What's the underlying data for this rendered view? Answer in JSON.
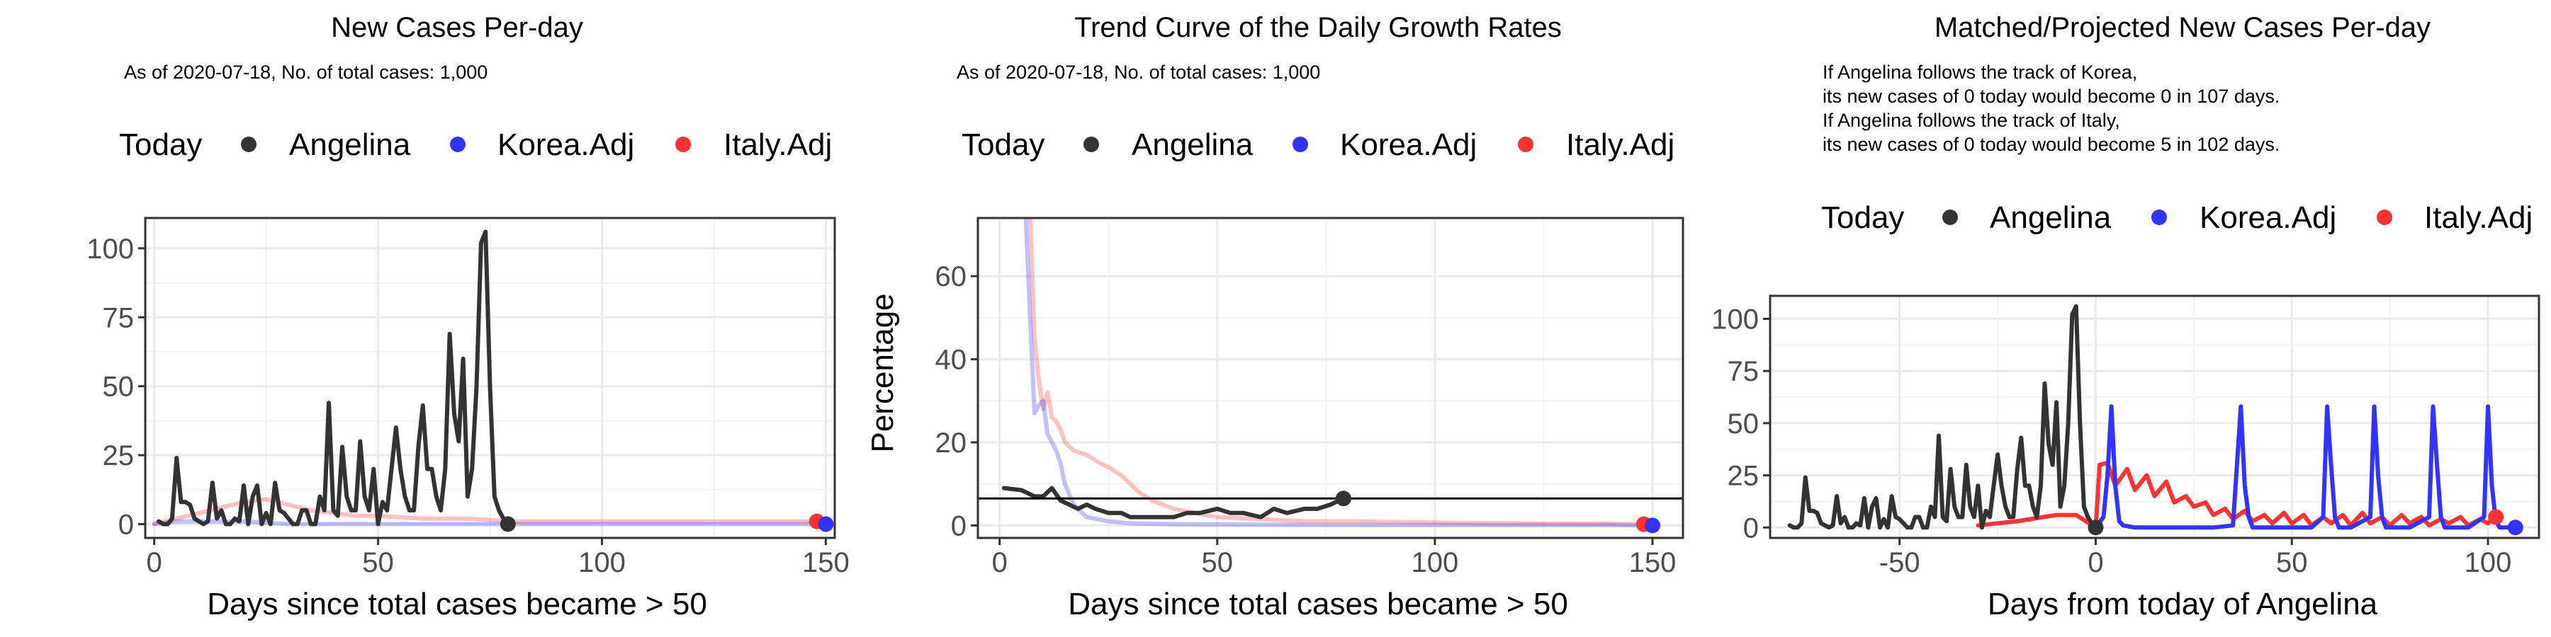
{
  "colors": {
    "angelina": "#333333",
    "korea": "#3333ff",
    "italy": "#ff3333",
    "refline": "#000000"
  },
  "chart_data": [
    {
      "type": "line",
      "title": "New Cases Per-day",
      "subtitle_lines": [
        "As of 2020-07-18, No. of total cases: 1,000"
      ],
      "legend": {
        "title": "Today",
        "entries": [
          "Angelina",
          "Korea.Adj",
          "Italy.Adj"
        ],
        "placement": "top"
      },
      "xlabel": "Days since total cases became > 50",
      "ylabel": "",
      "xlim": [
        -2,
        152
      ],
      "ylim": [
        -5,
        111
      ],
      "xticks": [
        0,
        50,
        100,
        150
      ],
      "yticks": [
        0,
        25,
        50,
        75,
        100
      ],
      "grid": true,
      "series": [
        {
          "name": "Italy.Adj",
          "color": "#ff3333",
          "opacity": 0.3,
          "x": [
            0,
            5,
            10,
            15,
            20,
            25,
            30,
            35,
            40,
            45,
            50,
            60,
            70,
            80,
            90,
            100,
            110,
            120,
            130,
            140,
            148
          ],
          "y": [
            0,
            2,
            4,
            6,
            8,
            9,
            7,
            5,
            4,
            3,
            3,
            2,
            2,
            1,
            1,
            1,
            1,
            1,
            1,
            1,
            1
          ],
          "today": {
            "x": 148,
            "y": 1
          }
        },
        {
          "name": "Korea.Adj",
          "color": "#3333ff",
          "opacity": 0.3,
          "x": [
            0,
            5,
            10,
            15,
            20,
            30,
            40,
            50,
            60,
            70,
            80,
            90,
            100,
            110,
            120,
            130,
            140,
            150
          ],
          "y": [
            0,
            1,
            1,
            1,
            1,
            0,
            0,
            0,
            0,
            0,
            0,
            0,
            0,
            0,
            0,
            0,
            0,
            0
          ],
          "today": {
            "x": 150,
            "y": 0
          }
        },
        {
          "name": "Angelina",
          "color": "#333333",
          "opacity": 1,
          "x": [
            1,
            2,
            3,
            4,
            5,
            6,
            7,
            8,
            9,
            10,
            11,
            12,
            13,
            14,
            15,
            16,
            17,
            18,
            19,
            20,
            21,
            22,
            23,
            24,
            25,
            26,
            27,
            28,
            29,
            30,
            31,
            32,
            33,
            34,
            35,
            36,
            37,
            38,
            39,
            40,
            41,
            42,
            43,
            44,
            45,
            46,
            47,
            48,
            49,
            50,
            51,
            52,
            53,
            54,
            55,
            56,
            57,
            58,
            59,
            60,
            61,
            62,
            63,
            64,
            65,
            66,
            67,
            68,
            69,
            70,
            71,
            72,
            73,
            74,
            75,
            76,
            77,
            78,
            79
          ],
          "y": [
            1,
            0,
            0,
            2,
            24,
            8,
            8,
            7,
            2,
            1,
            0,
            1,
            15,
            2,
            5,
            0,
            0,
            2,
            1,
            14,
            0,
            10,
            14,
            0,
            4,
            0,
            15,
            5,
            4,
            2,
            0,
            0,
            5,
            5,
            0,
            0,
            10,
            5,
            44,
            5,
            3,
            28,
            10,
            5,
            5,
            30,
            10,
            5,
            20,
            0,
            8,
            5,
            20,
            35,
            20,
            10,
            5,
            5,
            28,
            43,
            20,
            20,
            10,
            5,
            20,
            69,
            40,
            30,
            60,
            10,
            20,
            50,
            102,
            106,
            50,
            10,
            5,
            2,
            0
          ],
          "today": {
            "x": 79,
            "y": 0
          }
        }
      ]
    },
    {
      "type": "line",
      "title": "Trend Curve of the Daily Growth Rates",
      "subtitle_lines": [
        "As of 2020-07-18, No. of total cases: 1,000"
      ],
      "legend": {
        "title": "Today",
        "entries": [
          "Angelina",
          "Korea.Adj",
          "Italy.Adj"
        ],
        "placement": "top"
      },
      "xlabel": "Days since total cases became > 50",
      "ylabel": "Percentage",
      "xlim": [
        -5,
        157
      ],
      "ylim": [
        -3,
        74
      ],
      "xticks": [
        0,
        50,
        100,
        150
      ],
      "yticks": [
        0,
        20,
        40,
        60
      ],
      "grid": true,
      "hline": 6.5,
      "series": [
        {
          "name": "Italy.Adj",
          "color": "#ff3333",
          "opacity": 0.3,
          "x": [
            7,
            8,
            9,
            10,
            11,
            12,
            13,
            14,
            15,
            17,
            20,
            23,
            25,
            28,
            30,
            32,
            35,
            40,
            45,
            50,
            60,
            70,
            80,
            100,
            120,
            140,
            148
          ],
          "y": [
            74,
            45,
            35,
            28,
            32,
            26,
            25,
            23,
            20,
            18,
            17,
            15,
            14,
            12,
            10,
            8,
            6,
            4,
            3,
            2,
            1.5,
            1,
            1,
            0.7,
            0.5,
            0.4,
            0.3
          ],
          "today": {
            "x": 148,
            "y": 0.3
          }
        },
        {
          "name": "Korea.Adj",
          "color": "#3333ff",
          "opacity": 0.3,
          "x": [
            6,
            7,
            8,
            9,
            10,
            11,
            12,
            13,
            14,
            15,
            17,
            20,
            25,
            30,
            40,
            60,
            80,
            100,
            120,
            140,
            150
          ],
          "y": [
            74,
            50,
            27,
            29,
            30,
            22,
            20,
            18,
            15,
            10,
            5,
            2,
            1,
            0.5,
            0.3,
            0.2,
            0.1,
            0.1,
            0.1,
            0.1,
            0
          ],
          "today": {
            "x": 150,
            "y": 0
          }
        },
        {
          "name": "Angelina",
          "color": "#333333",
          "opacity": 1,
          "x": [
            1,
            5,
            8,
            10,
            12,
            14,
            16,
            18,
            20,
            22,
            25,
            28,
            30,
            33,
            36,
            40,
            43,
            46,
            50,
            53,
            56,
            60,
            63,
            66,
            70,
            73,
            76,
            79
          ],
          "y": [
            9,
            8.5,
            7,
            7,
            9,
            6,
            5,
            4,
            5,
            4,
            3,
            3,
            2,
            2,
            2,
            2,
            3,
            3,
            4,
            3,
            3,
            2,
            4,
            3,
            4,
            4,
            5,
            6.5
          ],
          "today": {
            "x": 79,
            "y": 6.5
          }
        }
      ]
    },
    {
      "type": "line",
      "title": "Matched/Projected New Cases Per-day",
      "subtitle_lines": [
        "If Angelina follows the track of Korea,",
        "its new cases of 0 today would become 0 in 107 days.",
        "If Angelina follows the track of Italy,",
        "its new cases of 0 today would become 5 in 102 days."
      ],
      "legend": {
        "title": "Today",
        "entries": [
          "Angelina",
          "Korea.Adj",
          "Italy.Adj"
        ],
        "placement": "top"
      },
      "xlabel": "Days from today of Angelina",
      "ylabel": "",
      "xlim": [
        -83,
        113
      ],
      "ylim": [
        -5,
        111
      ],
      "xticks": [
        -50,
        0,
        50,
        100
      ],
      "yticks": [
        0,
        25,
        50,
        75,
        100
      ],
      "grid": true,
      "series": [
        {
          "name": "Italy.Adj",
          "color": "#ff3333",
          "opacity": 1,
          "x": [
            -30,
            -20,
            -10,
            -5,
            0,
            1,
            3,
            5,
            8,
            10,
            13,
            15,
            18,
            20,
            23,
            25,
            28,
            30,
            33,
            35,
            38,
            40,
            43,
            45,
            48,
            50,
            53,
            55,
            58,
            60,
            63,
            65,
            68,
            70,
            73,
            75,
            78,
            80,
            83,
            85,
            88,
            90,
            93,
            95,
            98,
            100,
            102
          ],
          "y": [
            1,
            3,
            6,
            6,
            0,
            30,
            31,
            20,
            28,
            18,
            25,
            15,
            22,
            12,
            15,
            10,
            12,
            6,
            9,
            4,
            8,
            3,
            6,
            2,
            7,
            2,
            6,
            1,
            5,
            2,
            6,
            1,
            7,
            2,
            5,
            1,
            6,
            2,
            5,
            1,
            4,
            2,
            5,
            1,
            4,
            2,
            5
          ],
          "today": {
            "x": 102,
            "y": 5
          }
        },
        {
          "name": "Korea.Adj",
          "color": "#3333ff",
          "opacity": 1,
          "x": [
            0,
            2,
            3,
            4,
            5,
            6,
            7,
            10,
            20,
            30,
            35,
            36,
            37,
            38,
            39,
            40,
            45,
            55,
            58,
            59,
            60,
            61,
            62,
            65,
            70,
            71,
            72,
            73,
            74,
            75,
            80,
            85,
            86,
            87,
            88,
            89,
            90,
            95,
            99,
            100,
            101,
            102,
            103,
            107
          ],
          "y": [
            0,
            5,
            25,
            58,
            20,
            3,
            1,
            0,
            0,
            0,
            1,
            30,
            58,
            20,
            5,
            0,
            0,
            0,
            5,
            58,
            30,
            5,
            0,
            0,
            5,
            58,
            25,
            5,
            0,
            0,
            0,
            5,
            58,
            30,
            5,
            0,
            0,
            0,
            5,
            58,
            20,
            3,
            0,
            0
          ],
          "today": {
            "x": 107,
            "y": 0
          }
        },
        {
          "name": "Angelina",
          "color": "#333333",
          "opacity": 1,
          "x": [
            -78,
            -77,
            -76,
            -75,
            -74,
            -73,
            -72,
            -71,
            -70,
            -69,
            -68,
            -67,
            -66,
            -65,
            -64,
            -63,
            -62,
            -61,
            -60,
            -59,
            -58,
            -57,
            -56,
            -55,
            -54,
            -53,
            -52,
            -51,
            -50,
            -49,
            -48,
            -47,
            -46,
            -45,
            -44,
            -43,
            -42,
            -41,
            -40,
            -39,
            -38,
            -37,
            -36,
            -35,
            -34,
            -33,
            -32,
            -31,
            -30,
            -29,
            -28,
            -27,
            -26,
            -25,
            -24,
            -23,
            -22,
            -21,
            -20,
            -19,
            -18,
            -17,
            -16,
            -15,
            -14,
            -13,
            -12,
            -11,
            -10,
            -9,
            -8,
            -7,
            -6,
            -5,
            -4,
            -3,
            -2,
            -1,
            0
          ],
          "y": [
            1,
            0,
            0,
            2,
            24,
            8,
            8,
            7,
            2,
            1,
            0,
            1,
            15,
            2,
            5,
            0,
            0,
            2,
            1,
            14,
            0,
            10,
            14,
            0,
            4,
            0,
            15,
            5,
            4,
            2,
            0,
            0,
            5,
            5,
            0,
            0,
            10,
            5,
            44,
            5,
            3,
            28,
            10,
            5,
            5,
            30,
            10,
            5,
            20,
            0,
            8,
            5,
            20,
            35,
            20,
            10,
            5,
            5,
            28,
            43,
            20,
            20,
            10,
            5,
            20,
            69,
            40,
            30,
            60,
            10,
            20,
            50,
            102,
            106,
            50,
            10,
            5,
            2,
            0
          ],
          "today": {
            "x": 0,
            "y": 0
          }
        }
      ]
    }
  ]
}
